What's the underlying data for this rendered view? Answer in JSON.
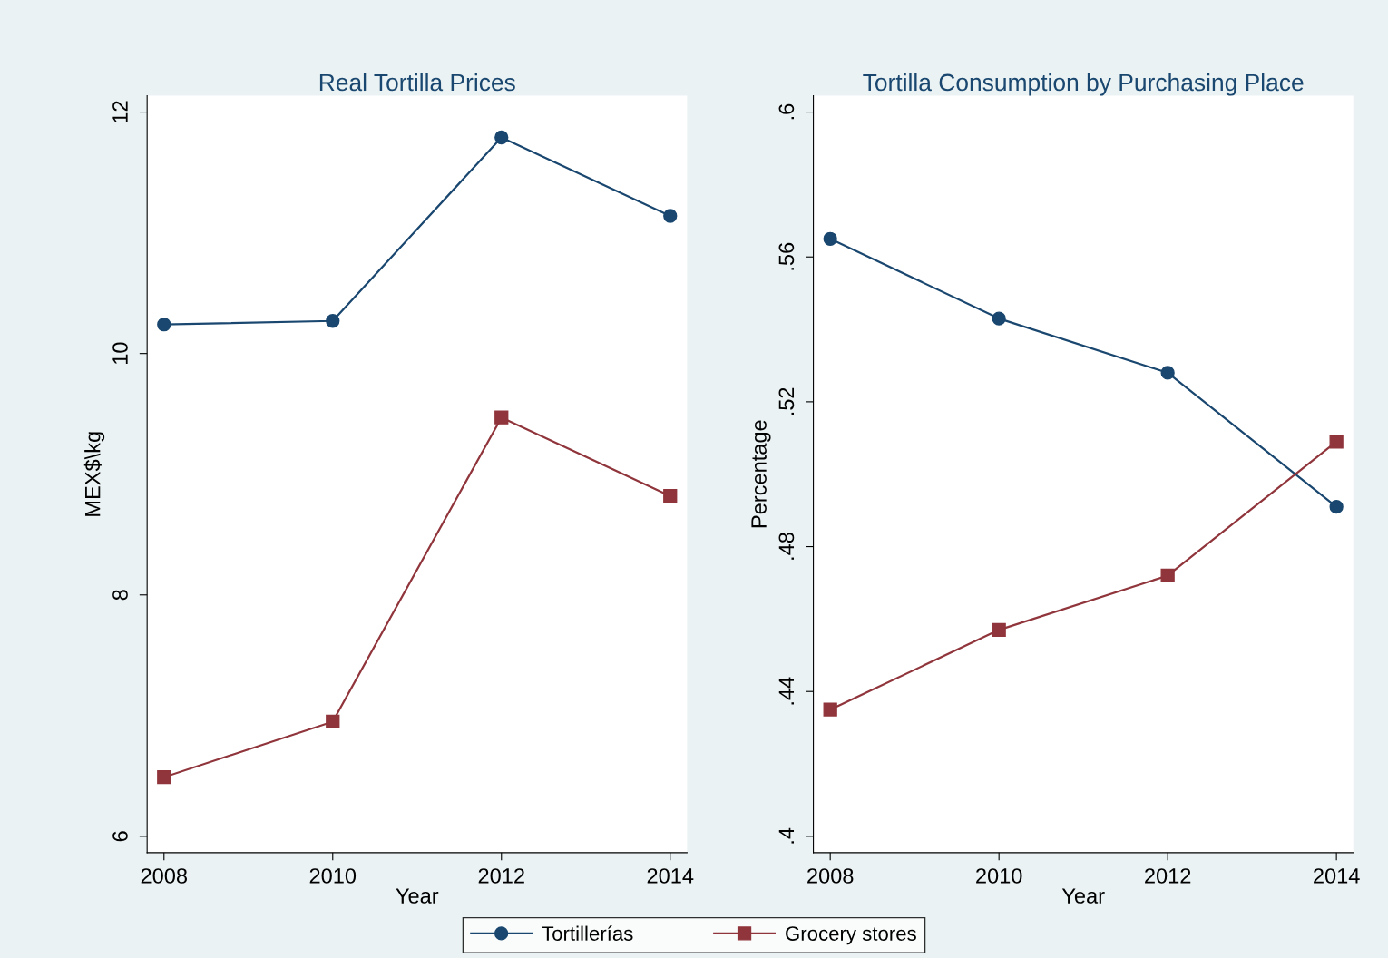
{
  "chart_data": [
    {
      "type": "line",
      "title": "Real Tortilla Prices",
      "xlabel": "Year",
      "ylabel": "MEX$\\kg",
      "x": [
        2008,
        2010,
        2012,
        2014
      ],
      "xlim": [
        2007.8,
        2014.2
      ],
      "xticks": [
        2008,
        2010,
        2012,
        2014
      ],
      "ylim": [
        5.865,
        12.135
      ],
      "yticks": [
        6,
        8,
        10,
        12
      ],
      "grid": false,
      "legend": "bottom",
      "series": [
        {
          "name": "Tortillerías",
          "color": "#1a476f",
          "marker": "circle",
          "values": [
            10.24,
            10.27,
            11.79,
            11.14
          ]
        },
        {
          "name": "Grocery stores",
          "color": "#90353b",
          "marker": "square",
          "values": [
            6.49,
            6.95,
            9.47,
            8.82
          ]
        }
      ]
    },
    {
      "type": "line",
      "title": "Tortilla Consumption by Purchasing Place",
      "xlabel": "Year",
      "ylabel": "Percentage",
      "x": [
        2008,
        2010,
        2012,
        2014
      ],
      "xlim": [
        2007.8,
        2014.2
      ],
      "xticks": [
        2008,
        2010,
        2012,
        2014
      ],
      "ylim": [
        0.3955,
        0.6045
      ],
      "yticks": [
        {
          "value": 0.4,
          "label": ".4"
        },
        {
          "value": 0.44,
          "label": ".44"
        },
        {
          "value": 0.48,
          "label": ".48"
        },
        {
          "value": 0.52,
          "label": ".52"
        },
        {
          "value": 0.56,
          "label": ".56"
        },
        {
          "value": 0.6,
          "label": ".6"
        }
      ],
      "grid": false,
      "series": [
        {
          "color": "#1a476f",
          "marker": "circle",
          "values": [
            0.565,
            0.543,
            0.528,
            0.491
          ]
        },
        {
          "color": "#90353b",
          "marker": "square",
          "values": [
            0.435,
            0.457,
            0.472,
            0.509
          ]
        }
      ]
    }
  ]
}
